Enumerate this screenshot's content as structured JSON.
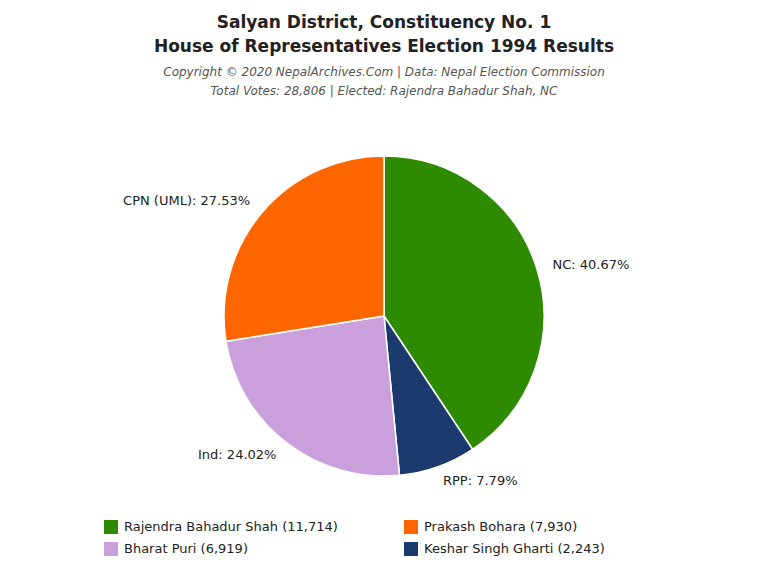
{
  "chart_data": {
    "type": "pie",
    "title": [
      "Salyan District, Constituency No. 1",
      "House of Representatives Election 1994 Results"
    ],
    "subtitle": [
      "Copyright © 2020 NepalArchives.Com | Data: Nepal Election Commission",
      "Total Votes: 28,806 | Elected: Rajendra Bahadur Shah, NC"
    ],
    "categories": [
      "NC",
      "RPP",
      "Ind",
      "CPN (UML)"
    ],
    "values": [
      40.67,
      7.79,
      24.02,
      27.53
    ],
    "value_labels": [
      "NC: 40.67%",
      "RPP: 7.79%",
      "Ind: 24.02%",
      "CPN (UML): 27.53%"
    ],
    "colors": [
      "#2e8b00",
      "#1a3a6e",
      "#c9a0dc",
      "#ff6600"
    ],
    "data_labels": true,
    "legend": "bottom",
    "legend_entries": [
      {
        "label": "Rajendra Bahadur Shah (11,714)",
        "color": "#2e8b00"
      },
      {
        "label": "Prakash Bohara (7,930)",
        "color": "#ff6600"
      },
      {
        "label": "Bharat Puri (6,919)",
        "color": "#c9a0dc"
      },
      {
        "label": "Keshar Singh Gharti (2,243)",
        "color": "#1a3a6e"
      }
    ]
  }
}
